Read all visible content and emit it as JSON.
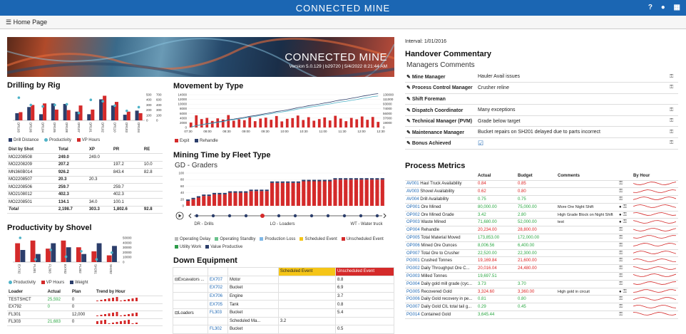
{
  "header": {
    "title": "CONNECTED MINE",
    "icons": [
      "help-icon",
      "user-icon",
      "apps-grid-icon"
    ]
  },
  "subbar": {
    "label": "Home Page"
  },
  "hero": {
    "title": "CONNECTED MINE",
    "subtitle": "Version 5.0.129 | b29720 | 5/4/2022 8:21:44 AM"
  },
  "drilling": {
    "title": "Drilling by Rig",
    "legend": [
      "Drill Distance",
      "Productivity",
      "VP Hours"
    ],
    "table_headers": [
      "Dist by Shot",
      "Total",
      "XP",
      "PR",
      "RE"
    ],
    "rows": [
      [
        "MO2208508",
        "249.0",
        "249.0",
        "",
        ""
      ],
      [
        "MO2208209",
        "207.2",
        "",
        "197.2",
        "10.0"
      ],
      [
        "MN360B014",
        "926.2",
        "",
        "843.4",
        "82.8"
      ],
      [
        "MO2208507",
        "20.3",
        "20.3",
        "",
        ""
      ],
      [
        "MO2208506",
        "259.7",
        "",
        "259.7",
        ""
      ],
      [
        "MO2108012",
        "402.3",
        "",
        "402.3",
        ""
      ],
      [
        "MO2208501",
        "134.1",
        "34.0",
        "100.1",
        ""
      ],
      [
        "Total",
        "2,198.7",
        "303.3",
        "1,802.6",
        "92.8"
      ]
    ]
  },
  "drilling_chart": {
    "type": "bar",
    "categories": [
      "DR103",
      "DR106",
      "DR104",
      "DR105",
      "DR108",
      "DR107",
      "DR101",
      "DR102",
      "DR110",
      "DR183",
      "DR104"
    ],
    "series": [
      {
        "name": "Drill Distance",
        "values": [
          140,
          260,
          120,
          330,
          320,
          170,
          120,
          410,
          290,
          110,
          190
        ]
      },
      {
        "name": "VP Hours",
        "values": [
          160,
          300,
          330,
          210,
          200,
          290,
          210,
          480,
          360,
          170,
          140
        ]
      },
      {
        "name": "Productivity",
        "values": [
          620,
          420,
          380,
          420,
          440,
          200,
          560,
          520,
          400,
          260,
          360
        ]
      }
    ],
    "ylim": [
      0,
      500
    ],
    "y2lim": [
      0,
      700
    ]
  },
  "productivity": {
    "title": "Productivity by Shovel",
    "legend": [
      "Productivity",
      "VP Hours",
      "Weight"
    ],
    "table_headers": [
      "Loader",
      "Actual",
      "Plan",
      "Trend by Hour"
    ],
    "rows": [
      [
        "TESTSHCT",
        "25,592",
        "0"
      ],
      [
        "EX792",
        "0",
        "0"
      ],
      [
        "FL301",
        "",
        "12,000"
      ],
      [
        "FL303",
        "21,683",
        "0"
      ]
    ]
  },
  "productivity_chart": {
    "type": "bar",
    "categories": [
      "EX792",
      "FL301",
      "FL303",
      "EX702",
      "FL302",
      "SH201",
      "SH202"
    ],
    "series": [
      {
        "name": "VP Hours",
        "values": [
          14,
          16,
          10,
          16,
          11,
          8,
          5
        ]
      },
      {
        "name": "Weight",
        "values": [
          9,
          6,
          14,
          11,
          6,
          14,
          12
        ]
      },
      {
        "name": "Productivity",
        "values": [
          18,
          2,
          9,
          4,
          8,
          2,
          7
        ]
      }
    ],
    "ylim": [
      0,
      18
    ],
    "y2lim": [
      0,
      50000
    ]
  },
  "movement": {
    "title": "Movement by Type",
    "legend": [
      "Expit",
      "Rehandle"
    ],
    "x_labels": [
      "07:30",
      "08:00",
      "08:30",
      "09:00",
      "09:30",
      "10:00",
      "10:30",
      "11:00",
      "11:30",
      "12:00",
      "12:30"
    ]
  },
  "movement_chart": {
    "type": "bar",
    "values": [
      2100,
      5200,
      3600,
      4100,
      2800,
      3900,
      3400,
      5300,
      2900,
      3500,
      3100,
      4600,
      2700,
      3800,
      4200,
      3300,
      4900,
      2600,
      3700,
      4000,
      5100,
      3200,
      4400,
      2900,
      3600,
      4300,
      3000,
      5000,
      3800,
      2700,
      4100,
      3500,
      4700,
      3300,
      4500,
      2400
    ],
    "ylim": [
      0,
      14000
    ],
    "y2lim": [
      0,
      130000
    ]
  },
  "mining_time": {
    "title": "Mining Time by Fleet Type",
    "subtitle": "GD - Graders",
    "timeline_labels": [
      "DR - Drills",
      "LO - Loaders",
      "WT - Water truck"
    ],
    "legend": [
      "Operating Delay",
      "Operating Standby",
      "Production Loss",
      "Scheduled Event",
      "Unscheduled Event",
      "Utility Work",
      "Value Productive"
    ],
    "legend_colors": [
      "#b9b9b9",
      "#6bc28c",
      "#7fb8e6",
      "#f5c518",
      "#d42a2a",
      "#2e9b4a",
      "#2c3e6b"
    ]
  },
  "mining_chart": {
    "type": "bar",
    "values": [
      0.15,
      0.2,
      0.25,
      0.3,
      0.3,
      0.35,
      0.35,
      0.35,
      0.4,
      0.4,
      0.4,
      0.4,
      0.45,
      0.45,
      0.45,
      0.45,
      0.7,
      0.7,
      0.7,
      0.7,
      0.7,
      0.7,
      0.75,
      0.75,
      0.75,
      0.75,
      0.75,
      0.75,
      0.8,
      0.8,
      0.8,
      0.8,
      0.8,
      0.8,
      0.8,
      0.8,
      0.8,
      0.8
    ]
  },
  "down": {
    "title": "Down Equipment",
    "headers": [
      "",
      "",
      "",
      "Scheduled Event",
      "Unscheduled Event"
    ],
    "rows": [
      [
        "Excavators ...",
        "EX707",
        "Motor",
        "",
        "8.8"
      ],
      [
        "",
        "EX702",
        "Bucket",
        "",
        "6.9"
      ],
      [
        "",
        "EX706",
        "Engine",
        "",
        "3.7"
      ],
      [
        "",
        "EX705",
        "Tank",
        "",
        "0.8"
      ],
      [
        "Loaders",
        "FL303",
        "Bucket",
        "",
        "5.4"
      ],
      [
        "",
        "",
        "Scheduled Ma...",
        "3.2",
        ""
      ],
      [
        "",
        "FL302",
        "Bucket",
        "",
        "0.5"
      ]
    ]
  },
  "interval": "Interval: 1/01/2016",
  "handover": {
    "title": "Handover Commentary",
    "subtitle": "Managers Comments",
    "rows": [
      {
        "role": "Mine Manager",
        "comment": "Hauler Avail issues",
        "locked": true
      },
      {
        "role": "Process Control Manager",
        "comment": "Crusher reline",
        "locked": true
      },
      {
        "role": "Shift Foreman",
        "comment": "",
        "locked": false
      },
      {
        "role": "Dispatch Coordinator",
        "comment": "Many exceptions",
        "locked": true
      },
      {
        "role": "Technical Manager (PVM)",
        "comment": "Grade below target",
        "locked": true
      },
      {
        "role": "Maintenance Manager",
        "comment": "Bucket repairs on SH201 delayed due to parts incorrect",
        "locked": true
      },
      {
        "role": "Bonus Achieved",
        "comment": "",
        "checked": true,
        "locked": true
      }
    ]
  },
  "process": {
    "title": "Process Metrics",
    "headers": [
      "",
      "Actual",
      "Budget",
      "Comments",
      "",
      "By Hour"
    ],
    "rows": [
      {
        "code": "AV001",
        "name": "Haul Truck Availability",
        "actual": "0.84",
        "budget": "0.85",
        "comment": "",
        "status": "red"
      },
      {
        "code": "AV003",
        "name": "Shovel Availability",
        "actual": "0.62",
        "budget": "0.80",
        "comment": "",
        "status": "red"
      },
      {
        "code": "AV004",
        "name": "Drill Availability",
        "actual": "0.75",
        "budget": "0.75",
        "comment": "",
        "status": "green"
      },
      {
        "code": "OP001",
        "name": "Ore Mined",
        "actual": "80,000.00",
        "budget": "75,000.00",
        "comment": "More Ore Night Shift",
        "status": "green"
      },
      {
        "code": "OP002",
        "name": "Ore Mined Grade",
        "actual": "3.42",
        "budget": "2.80",
        "comment": "High Grade Block on Night Shift",
        "status": "green"
      },
      {
        "code": "OP003",
        "name": "Waste Mined",
        "actual": "71,680.00",
        "budget": "52,000.00",
        "comment": "test",
        "status": "green"
      },
      {
        "code": "OP004",
        "name": "Rehandle",
        "actual": "20,234.00",
        "budget": "28,800.00",
        "comment": "",
        "status": "red"
      },
      {
        "code": "OP005",
        "name": "Total Material Moved",
        "actual": "173,853.00",
        "budget": "172,000.00",
        "comment": "",
        "status": "green"
      },
      {
        "code": "OP006",
        "name": "Mined Ore Ounces",
        "actual": "8,006.56",
        "budget": "6,400.00",
        "comment": "",
        "status": "green"
      },
      {
        "code": "OP007",
        "name": "Total Ore to Crusher",
        "actual": "22,520.00",
        "budget": "22,300.00",
        "comment": "",
        "status": "green"
      },
      {
        "code": "PG001",
        "name": "Crushed Tonnes",
        "actual": "19,169.84",
        "budget": "21,600.00",
        "comment": "",
        "status": "red"
      },
      {
        "code": "PG002",
        "name": "Daily Throughput Ore C...",
        "actual": "20,016.04",
        "budget": "24,480.00",
        "comment": "",
        "status": "red"
      },
      {
        "code": "PG003",
        "name": "Milled Tonnes",
        "actual": "19,697.51",
        "budget": "",
        "comment": "",
        "status": "green"
      },
      {
        "code": "PG004",
        "name": "Daily gold mill grade (cyc...",
        "actual": "3.73",
        "budget": "3.70",
        "comment": "",
        "status": "green"
      },
      {
        "code": "PG005",
        "name": "Recovered Gold",
        "actual": "3,324.60",
        "budget": "3,360.00",
        "comment": "High gold in circuit",
        "status": "red"
      },
      {
        "code": "PG006",
        "name": "Daily Gold recovery in pe...",
        "actual": "0.81",
        "budget": "0.80",
        "comment": "",
        "status": "green"
      },
      {
        "code": "PG007",
        "name": "Daily Gold CIL total tail g...",
        "actual": "0.29",
        "budget": "0.45",
        "comment": "",
        "status": "green"
      },
      {
        "code": "PG014",
        "name": "Contained Gold",
        "actual": "3,645.44",
        "budget": "",
        "comment": "",
        "status": "green"
      }
    ]
  }
}
